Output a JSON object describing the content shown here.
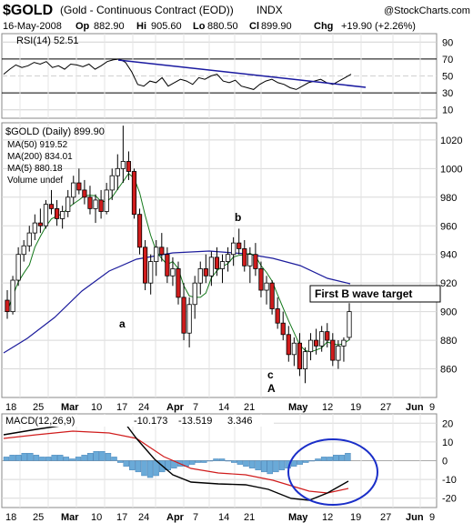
{
  "header": {
    "symbol": "$GOLD",
    "name": "(Gold - Continuous Contract (EOD))",
    "exchange": "INDX",
    "brand": "@StockCharts.com",
    "date": "16-May-2008",
    "open_label": "Op",
    "open": "882.90",
    "high_label": "Hi",
    "high": "905.60",
    "low_label": "Lo",
    "low": "880.50",
    "close_label": "Cl",
    "close": "899.90",
    "change_label": "Chg",
    "change": "+19.90 (+2.26%)"
  },
  "rsi_panel": {
    "label": "RSI(14) 52.51",
    "ticks": [
      "90",
      "70",
      "50",
      "30",
      "10"
    ]
  },
  "price_panel": {
    "label": "$GOLD (Daily) 899.90",
    "legend": [
      {
        "text": "MA(50) 919.52",
        "color": "#1c1c9c"
      },
      {
        "text": "MA(200) 834.01",
        "color": "#c41212"
      },
      {
        "text": "MA(5) 880.18",
        "color": "#157a1c"
      },
      {
        "text": "Volume undef",
        "color": "#444444"
      }
    ],
    "ticks": [
      "1020",
      "1000",
      "980",
      "960",
      "940",
      "920",
      "900",
      "880",
      "860"
    ],
    "annotations": {
      "a": "a",
      "b": "b",
      "c": "c",
      "A": "A",
      "target": "First B wave target"
    }
  },
  "macd_panel": {
    "label": "MACD(12,26,9)",
    "v1": "-10.173",
    "v2": "-13.519",
    "v3": "3.346",
    "ticks": [
      "20",
      "10",
      "0",
      "-10",
      "-20"
    ]
  },
  "x_axis": {
    "labels": [
      "18",
      "25",
      "Mar",
      "10",
      "17",
      "24",
      "Apr",
      "7",
      "14",
      "21",
      "May",
      "12",
      "19",
      "27",
      "Jun",
      "9"
    ]
  },
  "colors": {
    "up": "#ffffff",
    "down": "#d01c1c",
    "annotation": "#1a1aa0",
    "grid": "#d8d8d8",
    "ma50": "#1c1c9c",
    "ma5": "#157a1c",
    "macd_hist": "#6aaad8",
    "macd_signal": "#d01c1c",
    "circle": "#1a2ec8"
  },
  "chart_data": {
    "type": "candlestick",
    "title": "$GOLD (Gold - Continuous Contract (EOD)) INDX",
    "price_ylim": [
      840,
      1032
    ],
    "x_categories": [
      "Feb 18",
      "Feb 25",
      "Mar 3",
      "Mar 10",
      "Mar 17",
      "Mar 24",
      "Mar 31",
      "Apr 7",
      "Apr 14",
      "Apr 21",
      "Apr 28",
      "May 5",
      "May 12",
      "May 19",
      "May 27",
      "Jun 2",
      "Jun 9"
    ],
    "candles": [
      [
        908,
        915,
        895,
        900
      ],
      [
        900,
        925,
        898,
        922
      ],
      [
        922,
        945,
        918,
        940
      ],
      [
        940,
        950,
        935,
        946
      ],
      [
        946,
        960,
        942,
        955
      ],
      [
        955,
        968,
        950,
        962
      ],
      [
        962,
        972,
        955,
        960
      ],
      [
        960,
        978,
        958,
        975
      ],
      [
        975,
        985,
        968,
        972
      ],
      [
        972,
        978,
        960,
        965
      ],
      [
        965,
        974,
        958,
        970
      ],
      [
        970,
        985,
        966,
        980
      ],
      [
        980,
        995,
        975,
        990
      ],
      [
        990,
        1000,
        982,
        985
      ],
      [
        985,
        992,
        975,
        980
      ],
      [
        980,
        988,
        968,
        972
      ],
      [
        972,
        982,
        962,
        978
      ],
      [
        978,
        985,
        965,
        970
      ],
      [
        970,
        990,
        968,
        985
      ],
      [
        985,
        1000,
        978,
        995
      ],
      [
        995,
        1010,
        985,
        1000
      ],
      [
        1000,
        1030,
        990,
        1005
      ],
      [
        1005,
        1012,
        992,
        998
      ],
      [
        998,
        1000,
        965,
        968
      ],
      [
        968,
        972,
        940,
        945
      ],
      [
        945,
        950,
        915,
        920
      ],
      [
        920,
        940,
        912,
        935
      ],
      [
        935,
        950,
        925,
        945
      ],
      [
        945,
        955,
        935,
        940
      ],
      [
        940,
        945,
        920,
        925
      ],
      [
        925,
        938,
        918,
        930
      ],
      [
        930,
        935,
        905,
        910
      ],
      [
        910,
        920,
        880,
        885
      ],
      [
        885,
        910,
        875,
        905
      ],
      [
        905,
        925,
        895,
        920
      ],
      [
        920,
        935,
        912,
        930
      ],
      [
        930,
        940,
        920,
        925
      ],
      [
        925,
        942,
        918,
        938
      ],
      [
        938,
        945,
        925,
        930
      ],
      [
        930,
        940,
        920,
        935
      ],
      [
        935,
        945,
        928,
        940
      ],
      [
        940,
        952,
        932,
        948
      ],
      [
        948,
        958,
        940,
        944
      ],
      [
        944,
        950,
        928,
        932
      ],
      [
        932,
        945,
        920,
        940
      ],
      [
        940,
        948,
        925,
        930
      ],
      [
        930,
        935,
        910,
        915
      ],
      [
        915,
        925,
        905,
        920
      ],
      [
        920,
        922,
        898,
        902
      ],
      [
        902,
        910,
        888,
        892
      ],
      [
        892,
        900,
        880,
        884
      ],
      [
        884,
        890,
        865,
        870
      ],
      [
        870,
        882,
        862,
        878
      ],
      [
        878,
        885,
        855,
        860
      ],
      [
        860,
        875,
        850,
        872
      ],
      [
        872,
        885,
        866,
        880
      ],
      [
        880,
        888,
        870,
        876
      ],
      [
        876,
        890,
        872,
        886
      ],
      [
        886,
        892,
        875,
        880
      ],
      [
        880,
        885,
        862,
        866
      ],
      [
        866,
        880,
        860,
        876
      ],
      [
        876,
        882,
        865,
        880
      ],
      [
        882,
        906,
        880,
        900
      ]
    ],
    "rsi_ylim": [
      0,
      100
    ],
    "macd_ylim": [
      -25,
      25
    ]
  }
}
